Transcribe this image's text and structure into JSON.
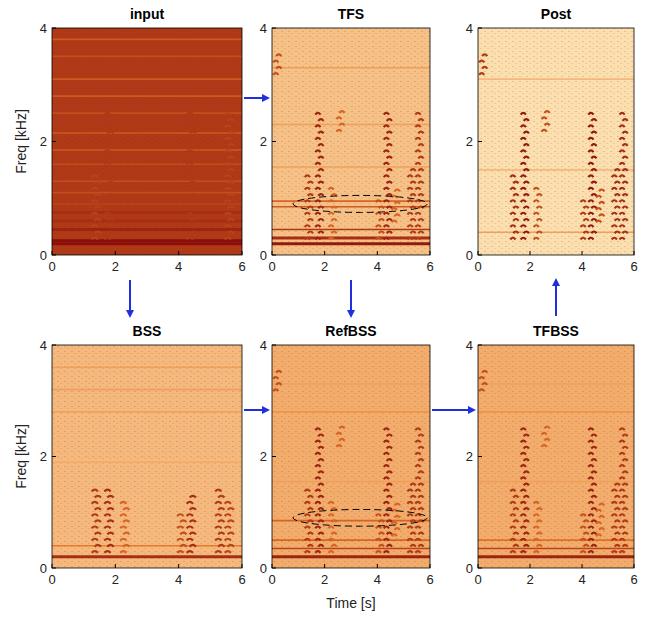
{
  "chart_data": [
    {
      "type": "spectrogram",
      "title": "input",
      "y_label": "Freq [kHz]",
      "xlim": [
        0,
        6
      ],
      "ylim": [
        0,
        4
      ],
      "xticks": [
        0,
        2,
        4,
        6
      ],
      "yticks": [
        0,
        2,
        4
      ],
      "noise": 0.8,
      "tones": [
        {
          "freq": 0.2,
          "level": 1.0
        },
        {
          "freq": 0.25,
          "level": 1.0
        },
        {
          "freq": 0.45,
          "level": 0.9
        },
        {
          "freq": 0.6,
          "level": 0.85
        },
        {
          "freq": 0.75,
          "level": 0.85
        },
        {
          "freq": 0.9,
          "level": 0.75
        },
        {
          "freq": 1.1,
          "level": 0.7
        },
        {
          "freq": 1.3,
          "level": 0.7
        },
        {
          "freq": 1.6,
          "level": 0.7
        },
        {
          "freq": 1.85,
          "level": 0.65
        },
        {
          "freq": 2.15,
          "level": 0.65
        },
        {
          "freq": 2.5,
          "level": 0.7
        },
        {
          "freq": 2.8,
          "level": 0.65
        },
        {
          "freq": 3.1,
          "level": 0.65
        },
        {
          "freq": 3.5,
          "level": 0.7
        },
        {
          "freq": 3.8,
          "level": 0.65
        }
      ],
      "bursts": [
        {
          "t": 1.4,
          "f0": 0.3,
          "f1": 1.5,
          "level": 0.75
        },
        {
          "t": 1.8,
          "f0": 0.3,
          "f1": 2.6,
          "level": 0.8
        },
        {
          "t": 4.4,
          "f0": 0.3,
          "f1": 2.5,
          "level": 0.8
        },
        {
          "t": 5.6,
          "f0": 0.3,
          "f1": 2.6,
          "level": 0.75
        }
      ]
    },
    {
      "type": "spectrogram",
      "title": "TFS",
      "xlim": [
        0,
        6
      ],
      "ylim": [
        0,
        4
      ],
      "xticks": [
        0,
        2,
        4,
        6
      ],
      "yticks": [
        0,
        2,
        4
      ],
      "noise": 0.22,
      "tones": [
        {
          "freq": 0.2,
          "level": 0.95
        },
        {
          "freq": 0.3,
          "level": 0.85
        },
        {
          "freq": 0.45,
          "level": 0.8
        },
        {
          "freq": 0.85,
          "level": 0.65
        },
        {
          "freq": 0.95,
          "level": 0.6
        },
        {
          "freq": 1.55,
          "level": 0.35
        },
        {
          "freq": 2.3,
          "level": 0.35
        },
        {
          "freq": 3.3,
          "level": 0.35
        }
      ],
      "bursts": [
        {
          "t": 0.2,
          "f0": 3.2,
          "f1": 3.6,
          "level": 0.7
        },
        {
          "t": 1.4,
          "f0": 0.3,
          "f1": 1.5,
          "level": 0.8
        },
        {
          "t": 1.8,
          "f0": 0.3,
          "f1": 2.6,
          "level": 0.9
        },
        {
          "t": 2.3,
          "f0": 0.3,
          "f1": 1.2,
          "level": 0.6
        },
        {
          "t": 2.6,
          "f0": 2.2,
          "f1": 2.6,
          "level": 0.6
        },
        {
          "t": 4.1,
          "f0": 0.3,
          "f1": 1.0,
          "level": 0.7
        },
        {
          "t": 4.4,
          "f0": 0.3,
          "f1": 2.5,
          "level": 0.9
        },
        {
          "t": 4.7,
          "f0": 0.6,
          "f1": 1.2,
          "level": 0.6
        },
        {
          "t": 5.3,
          "f0": 0.3,
          "f1": 1.6,
          "level": 0.8
        },
        {
          "t": 5.6,
          "f0": 0.3,
          "f1": 2.6,
          "level": 0.8
        }
      ],
      "ellipse": {
        "t": [
          0.8,
          5.9
        ],
        "f": [
          0.75,
          1.05
        ]
      }
    },
    {
      "type": "spectrogram",
      "title": "Post",
      "xlim": [
        0,
        6
      ],
      "ylim": [
        0,
        4
      ],
      "xticks": [
        0,
        2,
        4,
        6
      ],
      "yticks": [
        0,
        2,
        4
      ],
      "noise": 0.1,
      "tones": [
        {
          "freq": 0.4,
          "level": 0.35
        },
        {
          "freq": 1.5,
          "level": 0.25
        },
        {
          "freq": 3.1,
          "level": 0.25
        }
      ],
      "bursts": [
        {
          "t": 0.2,
          "f0": 3.2,
          "f1": 3.6,
          "level": 0.8
        },
        {
          "t": 1.4,
          "f0": 0.3,
          "f1": 1.5,
          "level": 0.85
        },
        {
          "t": 1.8,
          "f0": 0.3,
          "f1": 2.6,
          "level": 0.95
        },
        {
          "t": 2.3,
          "f0": 0.3,
          "f1": 1.2,
          "level": 0.7
        },
        {
          "t": 2.6,
          "f0": 2.2,
          "f1": 2.6,
          "level": 0.7
        },
        {
          "t": 4.1,
          "f0": 0.3,
          "f1": 1.0,
          "level": 0.8
        },
        {
          "t": 4.4,
          "f0": 0.3,
          "f1": 2.5,
          "level": 0.95
        },
        {
          "t": 4.7,
          "f0": 0.6,
          "f1": 1.2,
          "level": 0.7
        },
        {
          "t": 5.3,
          "f0": 0.3,
          "f1": 1.6,
          "level": 0.85
        },
        {
          "t": 5.6,
          "f0": 0.3,
          "f1": 2.6,
          "level": 0.85
        }
      ]
    },
    {
      "type": "spectrogram",
      "title": "BSS",
      "y_label": "Freq [kHz]",
      "xlim": [
        0,
        6
      ],
      "ylim": [
        0,
        4
      ],
      "xticks": [
        0,
        2,
        4,
        6
      ],
      "yticks": [
        0,
        2,
        4
      ],
      "noise": 0.25,
      "tones": [
        {
          "freq": 0.2,
          "level": 0.85
        },
        {
          "freq": 0.4,
          "level": 0.5
        },
        {
          "freq": 1.9,
          "level": 0.3
        },
        {
          "freq": 2.8,
          "level": 0.35
        },
        {
          "freq": 3.2,
          "level": 0.35
        },
        {
          "freq": 3.6,
          "level": 0.35
        }
      ],
      "bursts": [
        {
          "t": 1.4,
          "f0": 0.3,
          "f1": 1.5,
          "level": 0.8
        },
        {
          "t": 1.8,
          "f0": 0.3,
          "f1": 1.4,
          "level": 0.85
        },
        {
          "t": 2.3,
          "f0": 0.3,
          "f1": 1.2,
          "level": 0.6
        },
        {
          "t": 4.1,
          "f0": 0.3,
          "f1": 1.0,
          "level": 0.7
        },
        {
          "t": 4.4,
          "f0": 0.3,
          "f1": 1.3,
          "level": 0.85
        },
        {
          "t": 5.3,
          "f0": 0.3,
          "f1": 1.4,
          "level": 0.8
        },
        {
          "t": 5.6,
          "f0": 0.3,
          "f1": 1.2,
          "level": 0.75
        }
      ]
    },
    {
      "type": "spectrogram",
      "title": "RefBSS",
      "x_label": "Time [s]",
      "xlim": [
        0,
        6
      ],
      "ylim": [
        0,
        4
      ],
      "xticks": [
        0,
        2,
        4,
        6
      ],
      "yticks": [
        0,
        2,
        4
      ],
      "noise": 0.3,
      "tones": [
        {
          "freq": 0.2,
          "level": 0.9
        },
        {
          "freq": 0.35,
          "level": 0.75
        },
        {
          "freq": 0.5,
          "level": 0.6
        },
        {
          "freq": 0.85,
          "level": 0.6
        },
        {
          "freq": 1.55,
          "level": 0.35
        },
        {
          "freq": 2.8,
          "level": 0.4
        },
        {
          "freq": 3.3,
          "level": 0.35
        }
      ],
      "bursts": [
        {
          "t": 0.2,
          "f0": 3.2,
          "f1": 3.6,
          "level": 0.7
        },
        {
          "t": 1.4,
          "f0": 0.3,
          "f1": 1.5,
          "level": 0.8
        },
        {
          "t": 1.8,
          "f0": 0.3,
          "f1": 2.6,
          "level": 0.9
        },
        {
          "t": 2.3,
          "f0": 0.3,
          "f1": 1.2,
          "level": 0.6
        },
        {
          "t": 2.6,
          "f0": 2.2,
          "f1": 2.6,
          "level": 0.6
        },
        {
          "t": 4.1,
          "f0": 0.3,
          "f1": 1.0,
          "level": 0.7
        },
        {
          "t": 4.4,
          "f0": 0.3,
          "f1": 2.5,
          "level": 0.9
        },
        {
          "t": 4.7,
          "f0": 0.6,
          "f1": 1.2,
          "level": 0.6
        },
        {
          "t": 5.3,
          "f0": 0.3,
          "f1": 1.6,
          "level": 0.8
        },
        {
          "t": 5.6,
          "f0": 0.3,
          "f1": 2.6,
          "level": 0.8
        }
      ],
      "ellipse": {
        "t": [
          0.8,
          5.9
        ],
        "f": [
          0.75,
          1.05
        ]
      }
    },
    {
      "type": "spectrogram",
      "title": "TFBSS",
      "xlim": [
        0,
        6
      ],
      "ylim": [
        0,
        4
      ],
      "xticks": [
        0,
        2,
        4,
        6
      ],
      "yticks": [
        0,
        2,
        4
      ],
      "noise": 0.3,
      "tones": [
        {
          "freq": 0.2,
          "level": 0.9
        },
        {
          "freq": 0.35,
          "level": 0.75
        },
        {
          "freq": 0.5,
          "level": 0.55
        },
        {
          "freq": 1.55,
          "level": 0.35
        },
        {
          "freq": 2.8,
          "level": 0.4
        },
        {
          "freq": 3.3,
          "level": 0.35
        }
      ],
      "bursts": [
        {
          "t": 0.2,
          "f0": 3.2,
          "f1": 3.6,
          "level": 0.7
        },
        {
          "t": 1.4,
          "f0": 0.3,
          "f1": 1.5,
          "level": 0.8
        },
        {
          "t": 1.8,
          "f0": 0.3,
          "f1": 2.6,
          "level": 0.9
        },
        {
          "t": 2.3,
          "f0": 0.3,
          "f1": 1.2,
          "level": 0.6
        },
        {
          "t": 2.6,
          "f0": 2.2,
          "f1": 2.6,
          "level": 0.6
        },
        {
          "t": 4.1,
          "f0": 0.3,
          "f1": 1.0,
          "level": 0.7
        },
        {
          "t": 4.4,
          "f0": 0.3,
          "f1": 2.5,
          "level": 0.9
        },
        {
          "t": 4.7,
          "f0": 0.6,
          "f1": 1.2,
          "level": 0.6
        },
        {
          "t": 5.3,
          "f0": 0.3,
          "f1": 1.6,
          "level": 0.8
        },
        {
          "t": 5.6,
          "f0": 0.3,
          "f1": 2.6,
          "level": 0.8
        }
      ]
    }
  ]
}
